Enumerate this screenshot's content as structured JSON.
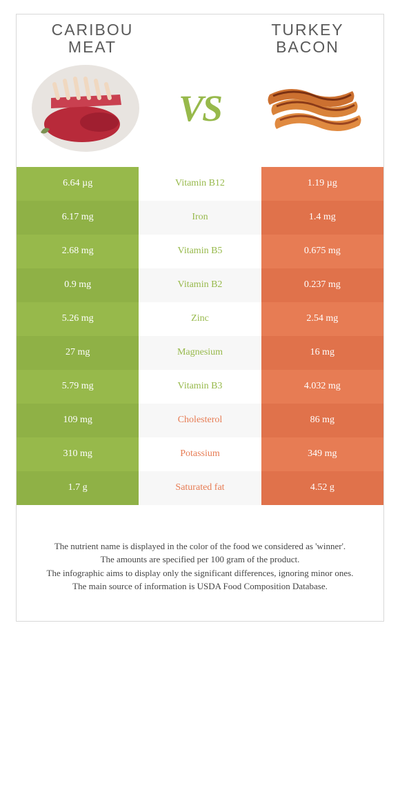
{
  "food_left": {
    "name": "CARIBOU MEAT",
    "color": "#97b94b"
  },
  "food_right": {
    "name": "TURKEY BACON",
    "color": "#e77c54"
  },
  "vs_text": "VS",
  "vs_color": "#97b94b",
  "table": {
    "left_bg": "#97b94b",
    "left_bg_alt": "#8fb146",
    "right_bg": "#e77c54",
    "right_bg_alt": "#e0724b",
    "mid_bg": "#ffffff",
    "mid_bg_alt": "#f7f7f7",
    "text_color": "#ffffff",
    "mid_fontsize": 14,
    "rows": [
      {
        "left": "6.64 µg",
        "nutrient": "Vitamin B12",
        "winner": "left",
        "right": "1.19 µg"
      },
      {
        "left": "6.17 mg",
        "nutrient": "Iron",
        "winner": "left",
        "right": "1.4 mg"
      },
      {
        "left": "2.68 mg",
        "nutrient": "Vitamin B5",
        "winner": "left",
        "right": "0.675 mg"
      },
      {
        "left": "0.9 mg",
        "nutrient": "Vitamin B2",
        "winner": "left",
        "right": "0.237 mg"
      },
      {
        "left": "5.26 mg",
        "nutrient": "Zinc",
        "winner": "left",
        "right": "2.54 mg"
      },
      {
        "left": "27 mg",
        "nutrient": "Magnesium",
        "winner": "left",
        "right": "16 mg"
      },
      {
        "left": "5.79 mg",
        "nutrient": "Vitamin B3",
        "winner": "left",
        "right": "4.032 mg"
      },
      {
        "left": "109 mg",
        "nutrient": "Cholesterol",
        "winner": "right",
        "right": "86 mg"
      },
      {
        "left": "310 mg",
        "nutrient": "Potassium",
        "winner": "right",
        "right": "349 mg"
      },
      {
        "left": "1.7 g",
        "nutrient": "Saturated fat",
        "winner": "right",
        "right": "4.52 g"
      }
    ]
  },
  "footnotes": [
    "The nutrient name is displayed in the color of the food we considered as 'winner'.",
    "The amounts are specified per 100 gram of the product.",
    "The infographic aims to display only the significant differences, ignoring minor ones.",
    "The main source of information is USDA Food Composition Database."
  ]
}
